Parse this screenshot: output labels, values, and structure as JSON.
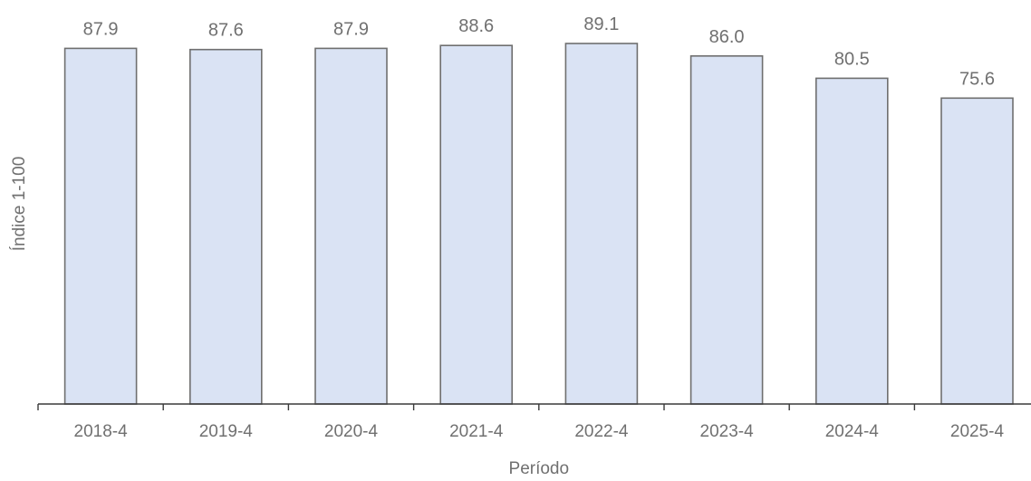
{
  "chart_data": {
    "type": "bar",
    "categories": [
      "2018-4",
      "2019-4",
      "2020-4",
      "2021-4",
      "2022-4",
      "2023-4",
      "2024-4",
      "2025-4"
    ],
    "values": [
      87.9,
      87.6,
      87.9,
      88.6,
      89.1,
      86.0,
      80.5,
      75.6
    ],
    "value_labels": [
      "87.9",
      "87.6",
      "87.9",
      "88.6",
      "89.1",
      "86.0",
      "80.5",
      "75.6"
    ],
    "title": "",
    "xlabel": "Período",
    "ylabel": "Índice 1-100",
    "ylim": [
      0,
      89.1
    ],
    "grid": false,
    "legend": "none",
    "colors": {
      "bar_fill": "#dae3f4",
      "bar_stroke": "#6f6f6f",
      "text": "#707070",
      "axis": "#3a3a3a"
    }
  }
}
